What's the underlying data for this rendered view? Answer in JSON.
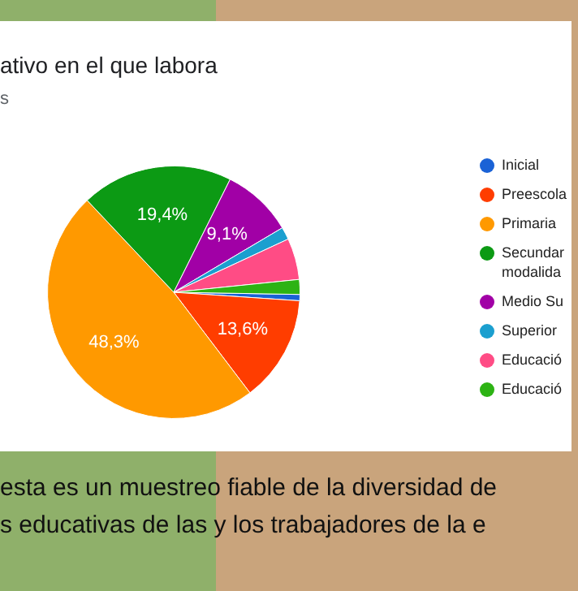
{
  "chart_data": {
    "type": "pie",
    "title": "ativo en el que labora",
    "subtitle": "s",
    "categories": [
      "Inicial",
      "Preescola",
      "Primaria",
      "Secundar modalida",
      "Medio Su",
      "Superior",
      "Educació",
      "Educació"
    ],
    "values": [
      0.8,
      13.6,
      48.3,
      19.4,
      9.1,
      1.6,
      5.3,
      1.9
    ],
    "colors": [
      "#1a62d6",
      "#ff3d00",
      "#ff9900",
      "#0c9a14",
      "#a100a6",
      "#1b9fcf",
      "#ff4c85",
      "#2db314"
    ],
    "value_labels": [
      null,
      "13,6%",
      "48,3%",
      "19,4%",
      "9,1%",
      null,
      null,
      null
    ],
    "legend": "right",
    "annotations": [
      "esta es un muestreo fiable de la diversidad de",
      "s educativas de las y los trabajadores de la e"
    ]
  }
}
